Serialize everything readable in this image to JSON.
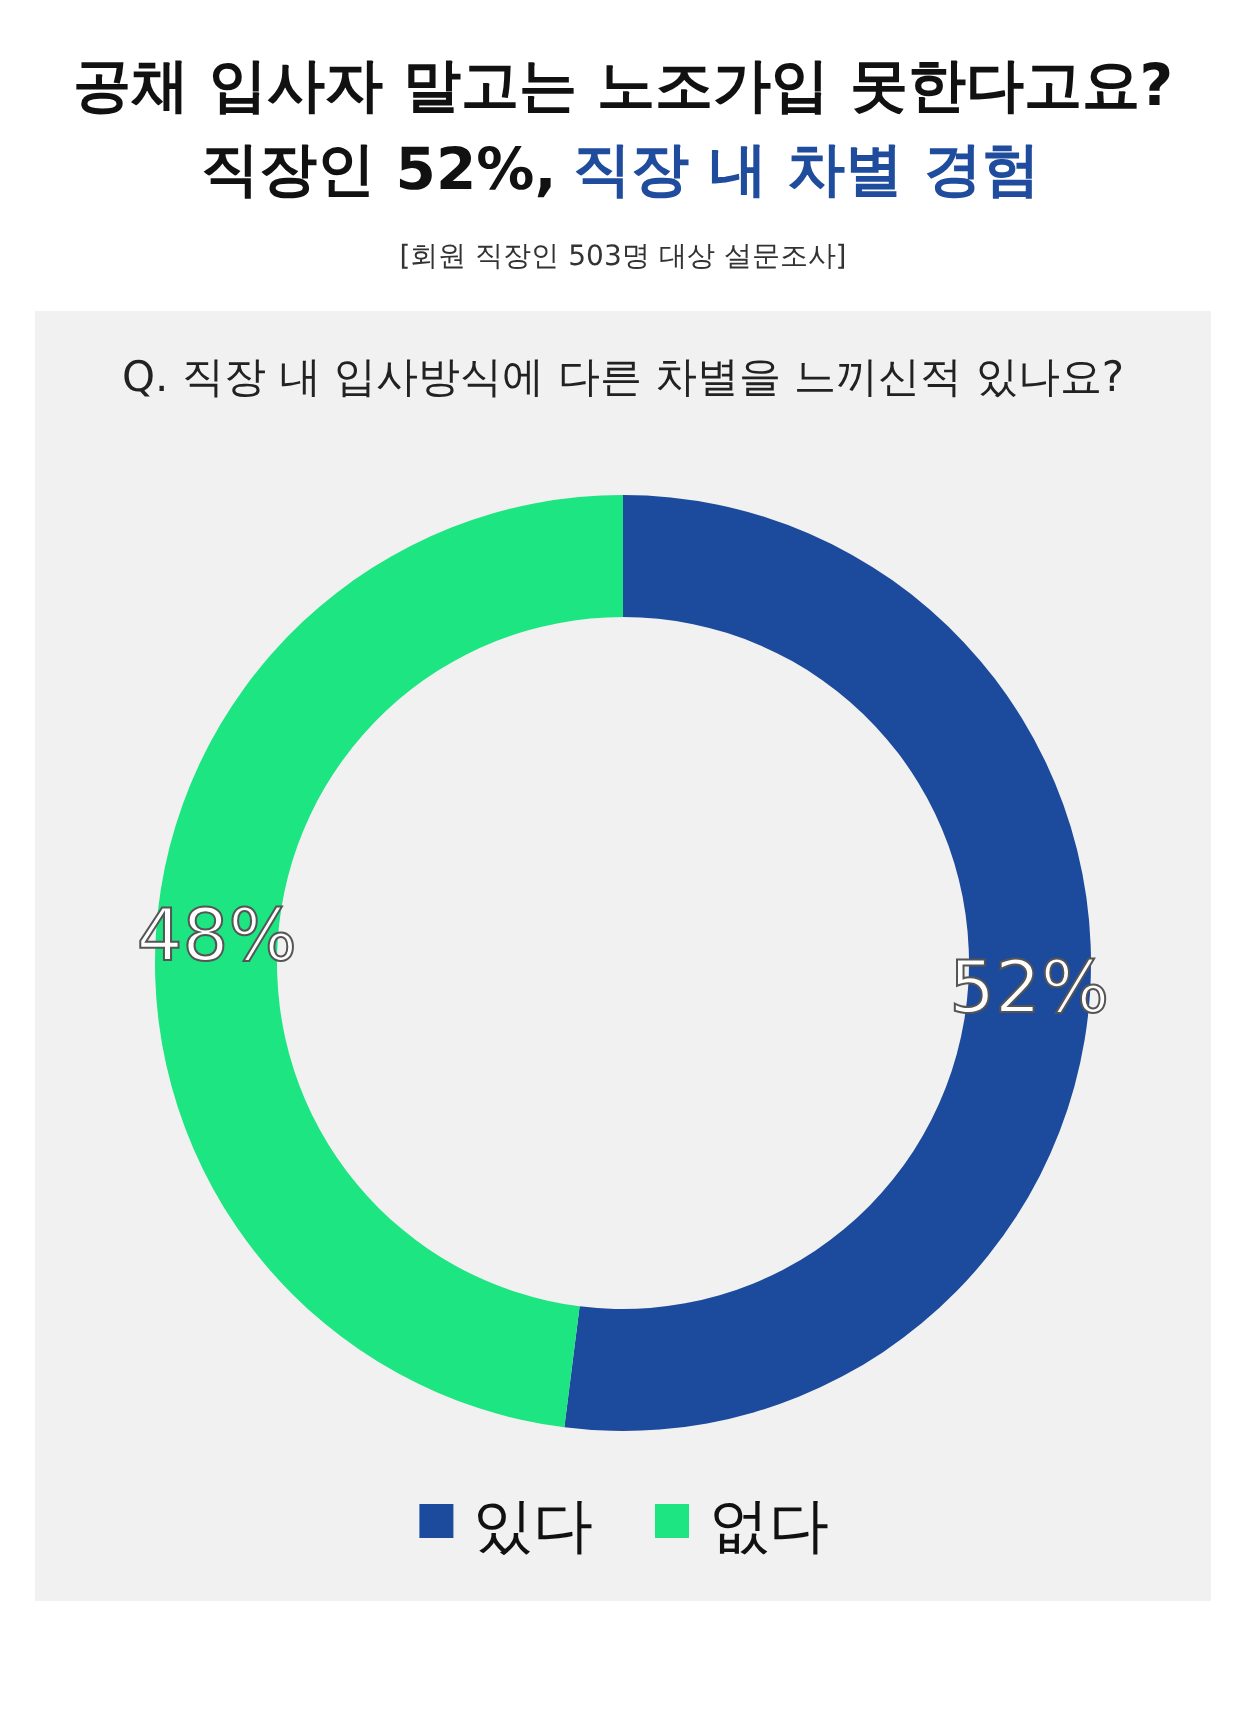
{
  "chart_data": {
    "type": "donut",
    "title": "공채 입사자 말고는 노조가입 못한다고요?\n직장인 52%, 직장 내 차별 경험",
    "subtitle": "Q. 직장 내 입사방식에 다른 차별을 느끼신적 있나요?",
    "annotations": [
      "[회원 직장인 503명 대상 설문조사]"
    ],
    "categories": [
      "있다",
      "없다"
    ],
    "values": [
      52,
      48
    ],
    "colors": [
      "#1c4a9c",
      "#1de581"
    ],
    "value_labels": [
      "52%",
      "48%"
    ],
    "legend": "bottom"
  }
}
